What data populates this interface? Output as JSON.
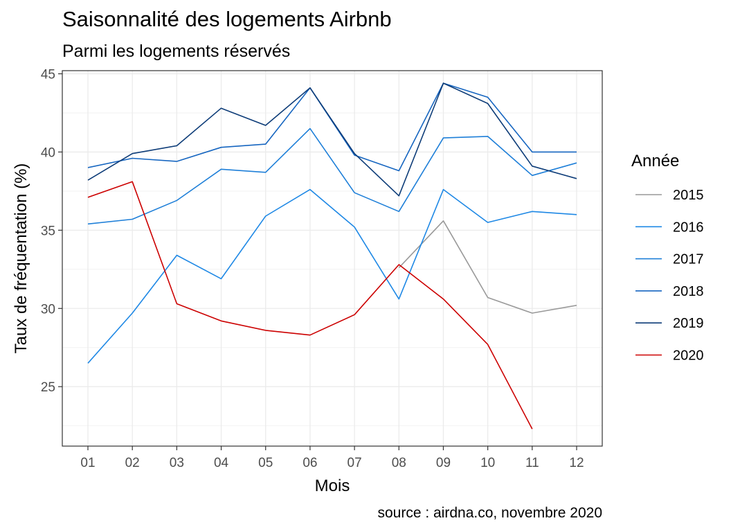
{
  "chart_data": {
    "type": "line",
    "title": "Saisonnalité des logements Airbnb",
    "subtitle": "Parmi les logements réservés",
    "caption": "source : airdna.co, novembre 2020",
    "xlabel": "Mois",
    "ylabel": "Taux de fréquentation (%)",
    "categories": [
      "01",
      "02",
      "03",
      "04",
      "05",
      "06",
      "07",
      "08",
      "09",
      "10",
      "11",
      "12"
    ],
    "yticks": [
      25,
      30,
      35,
      40,
      45
    ],
    "ylim": [
      21.2,
      45.2
    ],
    "grid": true,
    "legend": {
      "title": "Année",
      "placement": "right"
    },
    "series": [
      {
        "name": "2015",
        "color": "#999999",
        "values": [
          null,
          null,
          null,
          null,
          null,
          null,
          null,
          32.6,
          35.6,
          30.7,
          29.7,
          30.2
        ]
      },
      {
        "name": "2016",
        "color": "#1e88e5",
        "values": [
          26.5,
          29.7,
          33.4,
          31.9,
          35.9,
          37.6,
          35.2,
          30.6,
          37.6,
          35.5,
          36.2,
          36.0
        ]
      },
      {
        "name": "2017",
        "color": "#1e7fd8",
        "values": [
          35.4,
          35.7,
          36.9,
          38.9,
          38.7,
          41.5,
          37.4,
          36.2,
          40.9,
          41.0,
          38.5,
          39.3
        ]
      },
      {
        "name": "2018",
        "color": "#1565c0",
        "values": [
          39.0,
          39.6,
          39.4,
          40.3,
          40.5,
          44.1,
          39.8,
          38.8,
          44.4,
          43.5,
          40.0,
          40.0
        ]
      },
      {
        "name": "2019",
        "color": "#0d3c78",
        "values": [
          38.2,
          39.9,
          40.4,
          42.8,
          41.7,
          44.1,
          39.9,
          37.2,
          44.4,
          43.1,
          39.1,
          38.3
        ]
      },
      {
        "name": "2020",
        "color": "#cc0000",
        "values": [
          37.1,
          38.1,
          30.3,
          29.2,
          28.6,
          28.3,
          29.6,
          32.8,
          30.6,
          27.7,
          22.3,
          null
        ]
      }
    ]
  }
}
